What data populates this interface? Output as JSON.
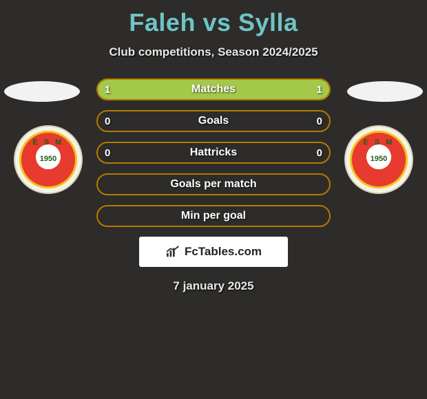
{
  "title": "Faleh vs Sylla",
  "subtitle": "Club competitions, Season 2024/2025",
  "date": "7 january 2025",
  "watermark": "FcTables.com",
  "colors": {
    "background": "#2d2c2a",
    "title": "#6fc4c4",
    "bar_border": "#b67a00",
    "bar_fill": "#a3c84a",
    "text": "#ffffff",
    "marker": "#f2f2f2"
  },
  "badge": {
    "letters": "E S M",
    "year": "1950"
  },
  "stats": [
    {
      "label": "Matches",
      "left_val": "1",
      "right_val": "1",
      "left_pct": 50,
      "right_pct": 50
    },
    {
      "label": "Goals",
      "left_val": "0",
      "right_val": "0",
      "left_pct": 0,
      "right_pct": 0
    },
    {
      "label": "Hattricks",
      "left_val": "0",
      "right_val": "0",
      "left_pct": 0,
      "right_pct": 0
    },
    {
      "label": "Goals per match",
      "left_val": "",
      "right_val": "",
      "left_pct": 0,
      "right_pct": 0
    },
    {
      "label": "Min per goal",
      "left_val": "",
      "right_val": "",
      "left_pct": 0,
      "right_pct": 0
    }
  ]
}
